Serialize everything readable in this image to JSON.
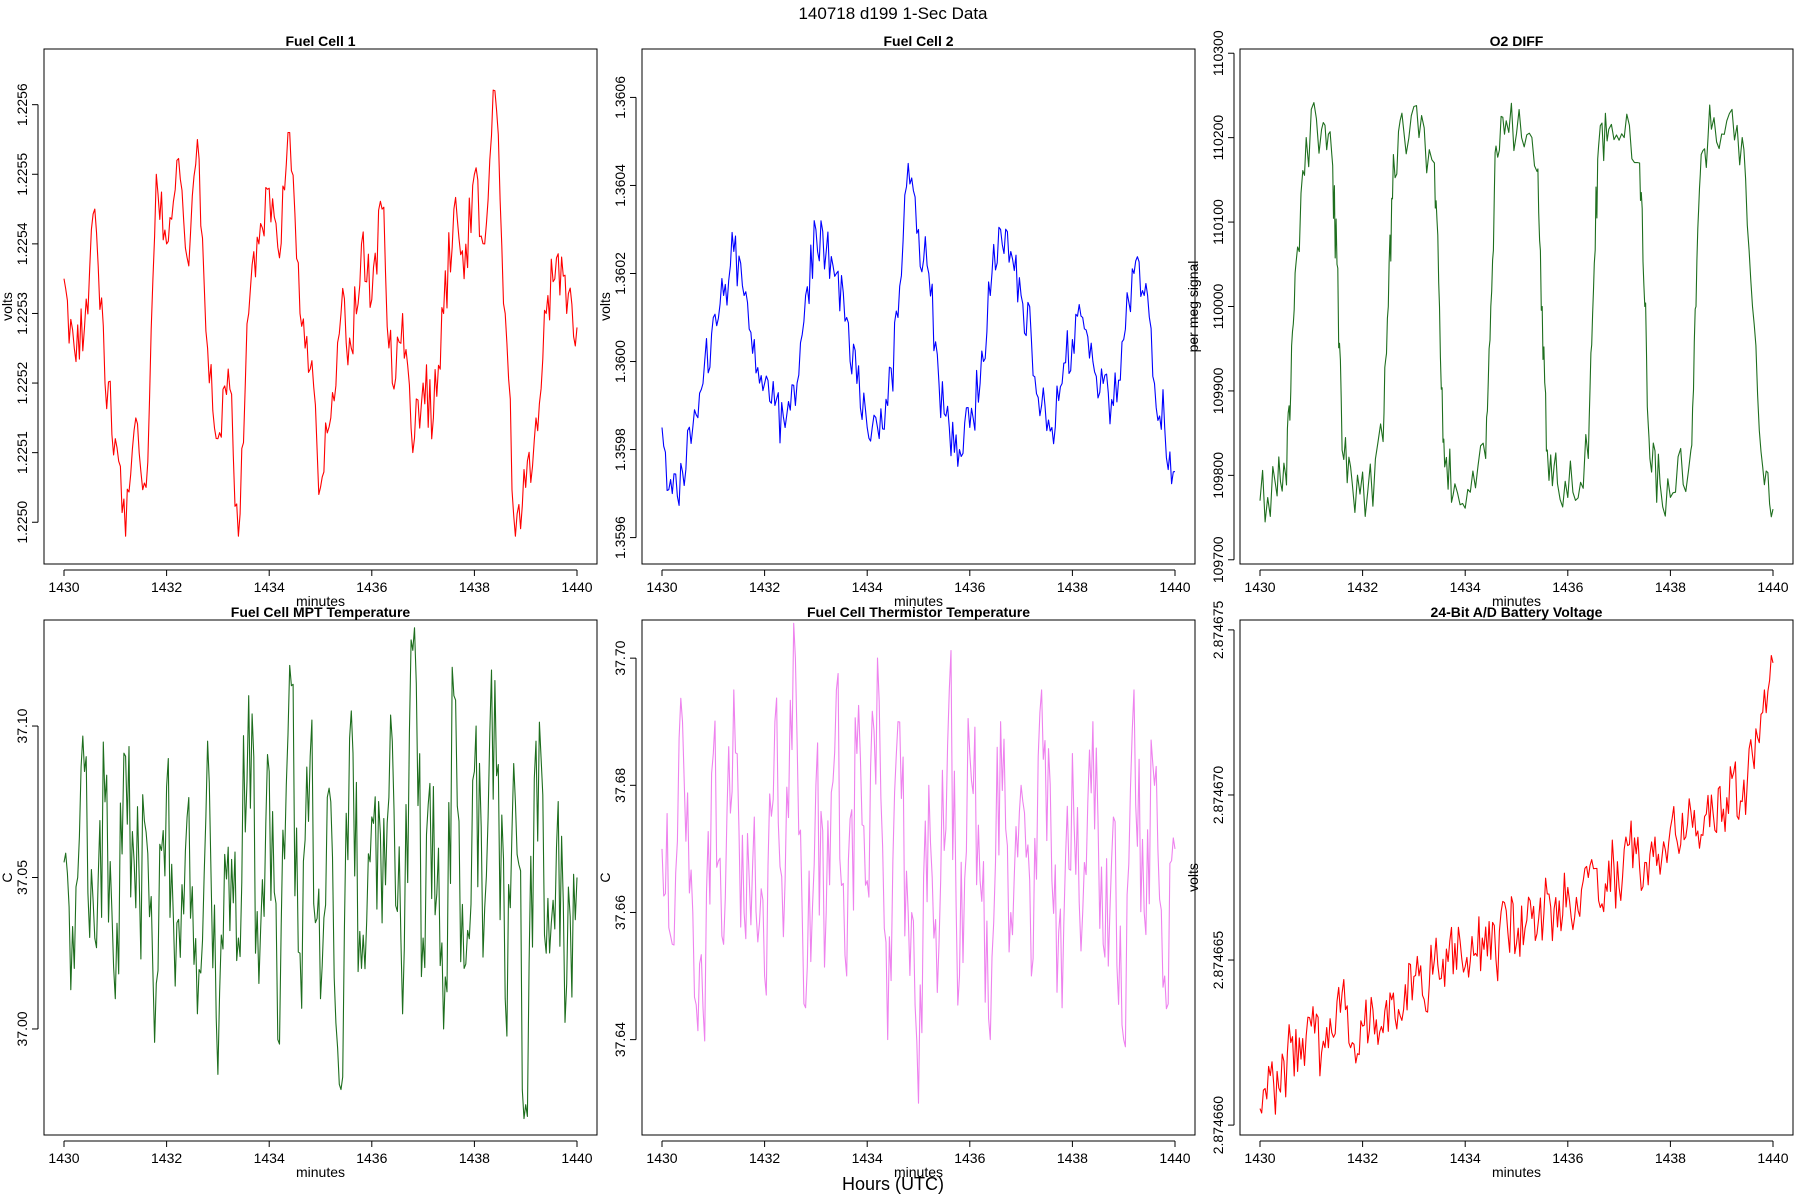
{
  "figure": {
    "title": "140718   d199   1-Sec Data",
    "xlabel_outer": "Hours (UTC)"
  },
  "chart_data": [
    {
      "type": "line",
      "title": "Fuel Cell 1",
      "xlabel": "minutes",
      "ylabel": "volts",
      "color": "#ff0000",
      "xlim": [
        1430,
        1440
      ],
      "ylim": [
        1.22494,
        1.22568
      ],
      "xticks": [
        1430,
        1432,
        1434,
        1436,
        1438,
        1440
      ],
      "xtick_labels": [
        "1430",
        "1432",
        "1434",
        "1436",
        "1438",
        "1440"
      ],
      "yticks": [
        1.225,
        1.2251,
        1.2252,
        1.2253,
        1.2254,
        1.2255,
        1.2256
      ],
      "ytick_labels": [
        "1.2250",
        "1.2251",
        "1.2252",
        "1.2253",
        "1.2254",
        "1.2255",
        "1.2256"
      ],
      "series": [
        {
          "x": [
            1430,
            1430.2,
            1430.4,
            1430.6,
            1430.8,
            1431,
            1431.2,
            1431.4,
            1431.6,
            1431.8,
            1432,
            1432.2,
            1432.4,
            1432.6,
            1432.8,
            1433,
            1433.2,
            1433.4,
            1433.6,
            1433.8,
            1434,
            1434.2,
            1434.4,
            1434.6,
            1434.8,
            1435,
            1435.2,
            1435.4,
            1435.6,
            1435.8,
            1436,
            1436.2,
            1436.4,
            1436.6,
            1436.8,
            1437,
            1437.2,
            1437.4,
            1437.6,
            1437.8,
            1438,
            1438.2,
            1438.4,
            1438.6,
            1438.8,
            1439,
            1439.2,
            1439.4,
            1439.6,
            1439.8,
            1440
          ],
          "y": [
            1.22535,
            1.22525,
            1.22528,
            1.22545,
            1.2252,
            1.22512,
            1.22498,
            1.22515,
            1.22505,
            1.2255,
            1.2254,
            1.22552,
            1.22538,
            1.22555,
            1.22525,
            1.22512,
            1.22522,
            1.22498,
            1.2253,
            1.2254,
            1.22548,
            1.22538,
            1.22556,
            1.2253,
            1.22522,
            1.22505,
            1.22515,
            1.2253,
            1.22525,
            1.2254,
            1.22532,
            1.22545,
            1.2252,
            1.2253,
            1.2251,
            1.2252,
            1.22515,
            1.2253,
            1.22545,
            1.22535,
            1.2255,
            1.2254,
            1.22562,
            1.2253,
            1.22498,
            1.22505,
            1.22515,
            1.2253,
            1.22538,
            1.2253,
            1.22528
          ]
        }
      ]
    },
    {
      "type": "line",
      "title": "Fuel Cell 2",
      "xlabel": "minutes",
      "ylabel": "volts",
      "color": "#0000ff",
      "xlim": [
        1430,
        1440
      ],
      "ylim": [
        1.35954,
        1.36071
      ],
      "xticks": [
        1430,
        1432,
        1434,
        1436,
        1438,
        1440
      ],
      "xtick_labels": [
        "1430",
        "1432",
        "1434",
        "1436",
        "1438",
        "1440"
      ],
      "yticks": [
        1.3596,
        1.3598,
        1.36,
        1.3602,
        1.3604,
        1.3606
      ],
      "ytick_labels": [
        "1.3596",
        "1.3598",
        "1.3600",
        "1.3602",
        "1.3604",
        "1.3606"
      ],
      "series": [
        {
          "x": [
            1430,
            1430.2,
            1430.4,
            1430.6,
            1430.8,
            1431,
            1431.2,
            1431.4,
            1431.6,
            1431.8,
            1432,
            1432.2,
            1432.4,
            1432.6,
            1432.8,
            1433,
            1433.2,
            1433.4,
            1433.6,
            1433.8,
            1434,
            1434.2,
            1434.4,
            1434.6,
            1434.8,
            1435,
            1435.2,
            1435.4,
            1435.6,
            1435.8,
            1436,
            1436.2,
            1436.4,
            1436.6,
            1436.8,
            1437,
            1437.2,
            1437.4,
            1437.6,
            1437.8,
            1438,
            1438.2,
            1438.4,
            1438.6,
            1438.8,
            1439,
            1439.2,
            1439.4,
            1439.6,
            1439.8,
            1440
          ],
          "y": [
            1.35985,
            1.3597,
            1.35975,
            1.35985,
            1.35995,
            1.3601,
            1.36015,
            1.36025,
            1.36015,
            1.36005,
            1.35995,
            1.3599,
            1.35985,
            1.3599,
            1.36015,
            1.3603,
            1.36025,
            1.3602,
            1.3601,
            1.35995,
            1.35985,
            1.35985,
            1.3599,
            1.3601,
            1.36045,
            1.3603,
            1.3602,
            1.35995,
            1.35985,
            1.3598,
            1.35985,
            1.35995,
            1.36015,
            1.3603,
            1.36025,
            1.36015,
            1.36005,
            1.3599,
            1.35985,
            1.35995,
            1.36005,
            1.3601,
            1.36,
            1.35995,
            1.3599,
            1.36005,
            1.3602,
            1.36015,
            1.35995,
            1.35985,
            1.35975
          ]
        }
      ]
    },
    {
      "type": "line",
      "title": "O2 DIFF",
      "xlabel": "minutes",
      "ylabel": "per meg signal",
      "color": "#1e6e1e",
      "xlim": [
        1430,
        1440
      ],
      "ylim": [
        109695,
        110305
      ],
      "xticks": [
        1430,
        1432,
        1434,
        1436,
        1438,
        1440
      ],
      "xtick_labels": [
        "1430",
        "1432",
        "1434",
        "1436",
        "1438",
        "1440"
      ],
      "yticks": [
        109700,
        109800,
        109900,
        110000,
        110100,
        110200,
        110300
      ],
      "ytick_labels": [
        "109700",
        "109800",
        "109900",
        "110000",
        "110100",
        "110200",
        "110300"
      ],
      "series": [
        {
          "x": [
            1430,
            1430.3,
            1430.5,
            1430.6,
            1430.7,
            1430.9,
            1431.2,
            1431.4,
            1431.5,
            1431.6,
            1431.8,
            1432.1,
            1432.4,
            1432.5,
            1432.6,
            1432.8,
            1433.1,
            1433.4,
            1433.5,
            1433.6,
            1433.8,
            1434.1,
            1434.4,
            1434.5,
            1434.6,
            1434.8,
            1435.1,
            1435.4,
            1435.5,
            1435.6,
            1435.8,
            1436.1,
            1436.4,
            1436.5,
            1436.6,
            1436.8,
            1437.1,
            1437.4,
            1437.5,
            1437.6,
            1437.8,
            1438.1,
            1438.4,
            1438.5,
            1438.6,
            1438.8,
            1439.1,
            1439.4,
            1439.6,
            1439.8,
            1440
          ],
          "y": [
            109770,
            109790,
            109800,
            109900,
            110050,
            110200,
            110210,
            110180,
            110050,
            109830,
            109790,
            109780,
            109840,
            110000,
            110180,
            110210,
            110200,
            110170,
            110000,
            109810,
            109790,
            109780,
            109820,
            110000,
            110190,
            110220,
            110200,
            110160,
            110000,
            109830,
            109790,
            109780,
            109820,
            110020,
            110190,
            110210,
            110200,
            110170,
            110000,
            109820,
            109790,
            109780,
            109830,
            110000,
            110180,
            110210,
            110220,
            110200,
            110000,
            109810,
            109760
          ]
        }
      ]
    },
    {
      "type": "line",
      "title": "Fuel Cell MPT Temperature",
      "xlabel": "minutes",
      "ylabel": "C",
      "color": "#1e6e1e",
      "xlim": [
        1430,
        1440
      ],
      "ylim": [
        36.965,
        37.135
      ],
      "xticks": [
        1430,
        1432,
        1434,
        1436,
        1438,
        1440
      ],
      "xtick_labels": [
        "1430",
        "1432",
        "1434",
        "1436",
        "1438",
        "1440"
      ],
      "yticks": [
        37.0,
        37.05,
        37.1
      ],
      "ytick_labels": [
        "37.00",
        "37.05",
        "37.10"
      ],
      "series": [
        {
          "x": [
            1430,
            1430.2,
            1430.4,
            1430.6,
            1430.8,
            1431,
            1431.2,
            1431.4,
            1431.6,
            1431.8,
            1432,
            1432.2,
            1432.4,
            1432.6,
            1432.8,
            1433,
            1433.2,
            1433.4,
            1433.6,
            1433.8,
            1434,
            1434.2,
            1434.4,
            1434.6,
            1434.8,
            1435,
            1435.2,
            1435.4,
            1435.6,
            1435.8,
            1436,
            1436.2,
            1436.4,
            1436.6,
            1436.8,
            1437,
            1437.2,
            1437.4,
            1437.6,
            1437.8,
            1438,
            1438.2,
            1438.4,
            1438.6,
            1438.8,
            1439,
            1439.2,
            1439.4,
            1439.6,
            1439.8,
            1440
          ],
          "y": [
            37.055,
            37.02,
            37.085,
            37.03,
            37.075,
            37.01,
            37.09,
            37.04,
            37.065,
            37.015,
            37.08,
            37.035,
            37.07,
            37.005,
            37.095,
            36.985,
            37.06,
            37.03,
            37.11,
            37.015,
            37.085,
            36.995,
            37.12,
            37.025,
            37.09,
            37.01,
            37.075,
            36.98,
            37.105,
            37.02,
            37.07,
            37.035,
            37.095,
            37.005,
            37.125,
            37.03,
            37.08,
            37.0,
            37.11,
            37.02,
            37.085,
            37.04,
            37.115,
            37.01,
            37.075,
            36.975,
            37.095,
            37.025,
            37.06,
            37.015,
            37.05
          ]
        }
      ]
    },
    {
      "type": "line",
      "title": "Fuel Cell Thermistor Temperature",
      "xlabel": "minutes",
      "ylabel": "C",
      "color": "#ee82ee",
      "xlim": [
        1430,
        1440
      ],
      "ylim": [
        37.625,
        37.706
      ],
      "xticks": [
        1430,
        1432,
        1434,
        1436,
        1438,
        1440
      ],
      "xtick_labels": [
        "1430",
        "1432",
        "1434",
        "1436",
        "1438",
        "1440"
      ],
      "yticks": [
        37.64,
        37.66,
        37.68,
        37.7
      ],
      "ytick_labels": [
        "37.64",
        "37.66",
        "37.68",
        "37.70"
      ],
      "series": [
        {
          "x": [
            1430,
            1430.2,
            1430.4,
            1430.6,
            1430.8,
            1431,
            1431.2,
            1431.4,
            1431.6,
            1431.8,
            1432,
            1432.2,
            1432.4,
            1432.6,
            1432.8,
            1433,
            1433.2,
            1433.4,
            1433.6,
            1433.8,
            1434,
            1434.2,
            1434.4,
            1434.6,
            1434.8,
            1435,
            1435.2,
            1435.4,
            1435.6,
            1435.8,
            1436,
            1436.2,
            1436.4,
            1436.6,
            1436.8,
            1437,
            1437.2,
            1437.4,
            1437.6,
            1437.8,
            1438,
            1438.2,
            1438.4,
            1438.6,
            1438.8,
            1439,
            1439.2,
            1439.4,
            1439.6,
            1439.8,
            1440
          ],
          "y": [
            37.67,
            37.655,
            37.69,
            37.66,
            37.645,
            37.685,
            37.655,
            37.695,
            37.66,
            37.675,
            37.65,
            37.69,
            37.665,
            37.7,
            37.645,
            37.68,
            37.66,
            37.695,
            37.65,
            37.685,
            37.665,
            37.7,
            37.64,
            37.69,
            37.66,
            37.63,
            37.68,
            37.655,
            37.695,
            37.65,
            37.685,
            37.665,
            37.64,
            37.69,
            37.66,
            37.68,
            37.65,
            37.695,
            37.665,
            37.645,
            37.685,
            37.66,
            37.69,
            37.655,
            37.675,
            37.64,
            37.695,
            37.66,
            37.68,
            37.65,
            37.67
          ]
        }
      ]
    },
    {
      "type": "line",
      "title": "24-Bit A/D Battery Voltage",
      "xlabel": "minutes",
      "ylabel": "volts",
      "color": "#ff0000",
      "xlim": [
        1430,
        1440
      ],
      "ylim": [
        2.8746597,
        2.8746753
      ],
      "xticks": [
        1430,
        1432,
        1434,
        1436,
        1438,
        1440
      ],
      "xtick_labels": [
        "1430",
        "1432",
        "1434",
        "1436",
        "1438",
        "1440"
      ],
      "yticks": [
        2.87466,
        2.874665,
        2.87467,
        2.874675
      ],
      "ytick_labels": [
        "2.874660",
        "2.874665",
        "2.874670",
        "2.874675"
      ],
      "series": [
        {
          "x": [
            1430,
            1430.2,
            1430.4,
            1430.6,
            1430.8,
            1431,
            1431.2,
            1431.4,
            1431.6,
            1431.8,
            1432,
            1432.2,
            1432.4,
            1432.6,
            1432.8,
            1433,
            1433.2,
            1433.4,
            1433.6,
            1433.8,
            1434,
            1434.2,
            1434.4,
            1434.6,
            1434.8,
            1435,
            1435.2,
            1435.4,
            1435.6,
            1435.8,
            1436,
            1436.2,
            1436.4,
            1436.6,
            1436.8,
            1437,
            1437.2,
            1437.4,
            1437.6,
            1437.8,
            1438,
            1438.2,
            1438.4,
            1438.6,
            1438.8,
            1439,
            1439.2,
            1439.4,
            1439.6,
            1439.8,
            1440
          ],
          "y": [
            2.8746605,
            2.8746615,
            2.874661,
            2.8746625,
            2.874662,
            2.874663,
            2.8746622,
            2.8746628,
            2.874664,
            2.8746625,
            2.874663,
            2.8746635,
            2.8746628,
            2.874664,
            2.8746635,
            2.8746645,
            2.8746638,
            2.874665,
            2.8746642,
            2.8746655,
            2.8746648,
            2.8746652,
            2.874666,
            2.874665,
            2.8746665,
            2.8746655,
            2.8746662,
            2.8746658,
            2.874667,
            2.874666,
            2.8746672,
            2.8746665,
            2.8746675,
            2.8746668,
            2.874668,
            2.8746672,
            2.8746685,
            2.8746678,
            2.8746682,
            2.8746676,
            2.874669,
            2.8746685,
            2.8746695,
            2.8746688,
            2.87467,
            2.8746692,
            2.8746705,
            2.8746698,
            2.8746712,
            2.8746725,
            2.874674
          ]
        }
      ]
    }
  ]
}
